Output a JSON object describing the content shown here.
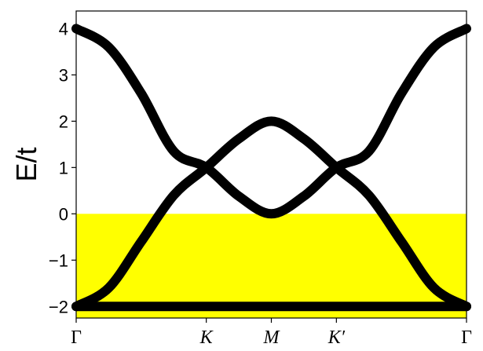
{
  "chart_data": {
    "type": "line",
    "title": "",
    "xlabel": "",
    "ylabel": "E/t",
    "ylim": [
      -2.25,
      4.38
    ],
    "yticks": [
      -2,
      -1,
      0,
      1,
      2,
      3,
      4
    ],
    "ytick_labels": [
      "−2",
      "−1",
      "0",
      "1",
      "2",
      "3",
      "4"
    ],
    "x_range": [
      0,
      3
    ],
    "xticks": [
      0,
      1,
      1.5,
      2,
      3
    ],
    "xtick_labels": [
      "Γ",
      "K",
      "M",
      "K′",
      "Γ"
    ],
    "grid": false,
    "filled_region": {
      "color": "#ffff00",
      "y_from": -2.25,
      "y_to": 0
    },
    "line_color": "#000000",
    "series": [
      {
        "x": [
          0,
          0.25,
          0.5,
          0.75,
          1,
          1.25,
          1.5,
          1.75,
          2,
          2.25,
          2.5,
          2.75,
          3
        ],
        "values": [
          4.0,
          3.6,
          2.6,
          1.35,
          1.0,
          0.38,
          0.0,
          0.38,
          1.0,
          1.35,
          2.6,
          3.6,
          4.0
        ]
      },
      {
        "x": [
          0,
          0.25,
          0.5,
          0.75,
          1,
          1.25,
          1.5,
          1.75,
          2,
          2.25,
          2.5,
          2.75,
          3
        ],
        "values": [
          -2.0,
          -1.6,
          -0.6,
          0.4,
          1.0,
          1.62,
          2.0,
          1.62,
          1.0,
          0.4,
          -0.6,
          -1.6,
          -2.0
        ]
      },
      {
        "x": [
          0,
          0.5,
          1,
          1.5,
          2,
          2.5,
          3
        ],
        "values": [
          -2.0,
          -2.0,
          -2.0,
          -2.0,
          -2.0,
          -2.0,
          -2.0
        ]
      }
    ]
  }
}
